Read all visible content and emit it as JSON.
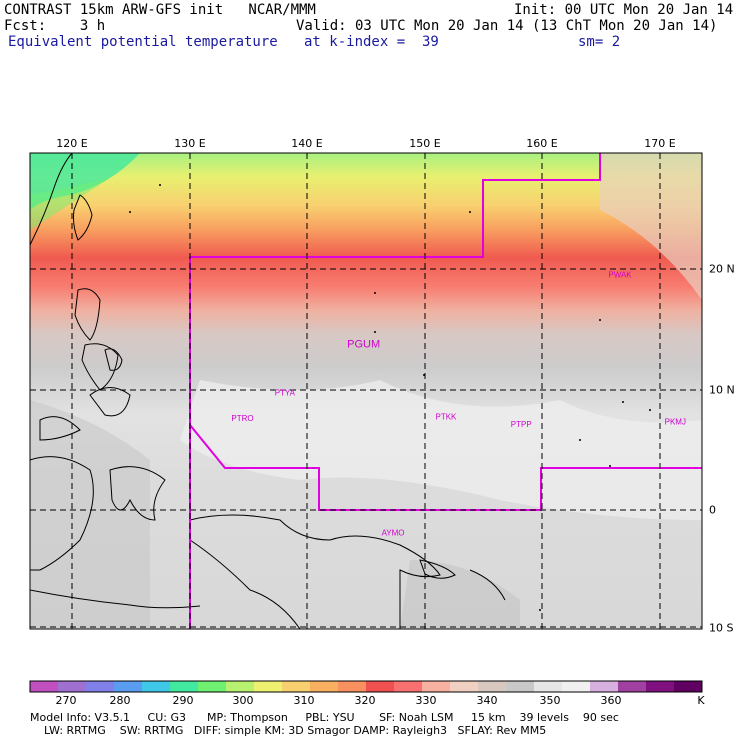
{
  "header": {
    "line1_left": "CONTRAST 15km ARW-GFS init   NCAR/MMM",
    "line1_right": "Init: 00 UTC Mon 20 Jan 14",
    "line2_left": "Fcst:    3 h",
    "line2_right": "Valid: 03 UTC Mon 20 Jan 14 (13 ChT Mon 20 Jan 14)",
    "line3_left": "Equivalent potential temperature",
    "line3_mid": "at k-index =  39",
    "line3_right": "sm= 2"
  },
  "map": {
    "lon_labels": [
      "120 E",
      "130 E",
      "140 E",
      "150 E",
      "160 E",
      "170 E"
    ],
    "lat_labels": [
      "20 N",
      "10 N",
      "0",
      "10 S"
    ],
    "stations": [
      {
        "id": "PWAK",
        "lon": 166.6,
        "lat": 19.3
      },
      {
        "id": "PGUM",
        "lon": 144.8,
        "lat": 13.5
      },
      {
        "id": "PTYA",
        "lon": 138.1,
        "lat": 9.5
      },
      {
        "id": "PTRO",
        "lon": 134.5,
        "lat": 7.4
      },
      {
        "id": "PTKK",
        "lon": 151.8,
        "lat": 7.5
      },
      {
        "id": "PTPP",
        "lon": 158.2,
        "lat": 6.9
      },
      {
        "id": "PKMJ",
        "lon": 171.3,
        "lat": 7.1
      },
      {
        "id": "AYMO",
        "lon": 147.3,
        "lat": -2.1
      }
    ],
    "colors": {
      "boundary": "#e000e0",
      "grid": "#000000",
      "coast": "#000000",
      "station": "#d000d0"
    }
  },
  "colorbar": {
    "colors": [
      "#c050c0",
      "#a070d0",
      "#8080e8",
      "#5a9cf0",
      "#40c8e8",
      "#40e8a0",
      "#70f070",
      "#b8f070",
      "#f0f070",
      "#f8d070",
      "#f8b060",
      "#f89060",
      "#f05050",
      "#f87070",
      "#f8b0a0",
      "#f0d0c0",
      "#d8c8c0",
      "#c8c8c8",
      "#e6e6e6",
      "#f0f0f0",
      "#d8b0e0",
      "#a040a0",
      "#801080",
      "#600060"
    ],
    "labels": [
      "270",
      "280",
      "290",
      "300",
      "310",
      "320",
      "330",
      "340",
      "350",
      "360"
    ],
    "unit": "K"
  },
  "footer": {
    "line1": "Model Info: V3.5.1     CU: G3      MP: Thompson     PBL: YSU       SF: Noah LSM     15 km    39 levels    90 sec",
    "line2": "    LW: RRTMG    SW: RRTMG   DIFF: simple KM: 3D Smagor DAMP: Rayleigh3   SFLAY: Rev MM5"
  }
}
